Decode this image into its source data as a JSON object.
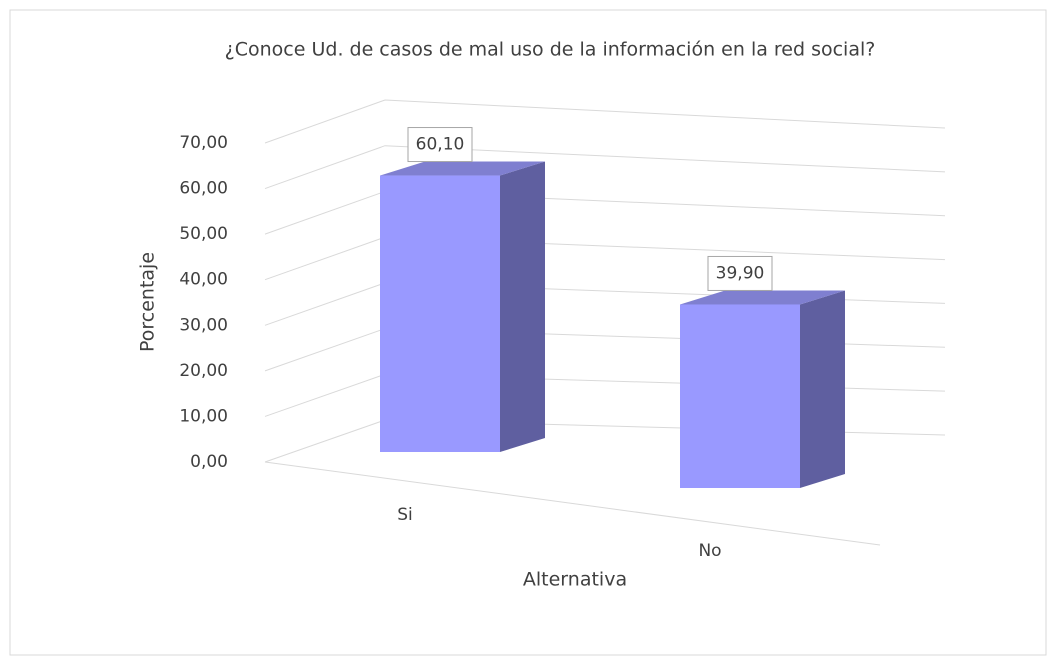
{
  "chart_data": {
    "type": "bar3d",
    "title": "¿Conoce Ud.  de casos  de mal  uso de la información en la red social?",
    "categories": [
      "Si",
      "No"
    ],
    "values": [
      60.1,
      39.9
    ],
    "value_labels": [
      "60,10",
      "39,90"
    ],
    "color": "#9999ff",
    "xlabel": "Alternativa",
    "ylabel": "Porcentaje",
    "ylim": [
      0,
      70
    ],
    "yticks": [
      {
        "value": 0,
        "label": "0,00"
      },
      {
        "value": 10,
        "label": "10,00"
      },
      {
        "value": 20,
        "label": "20,00"
      },
      {
        "value": 30,
        "label": "30,00"
      },
      {
        "value": 40,
        "label": "40,00"
      },
      {
        "value": 50,
        "label": "50,00"
      },
      {
        "value": 60,
        "label": "60,00"
      },
      {
        "value": 70,
        "label": "70,00"
      }
    ],
    "grid": true
  }
}
